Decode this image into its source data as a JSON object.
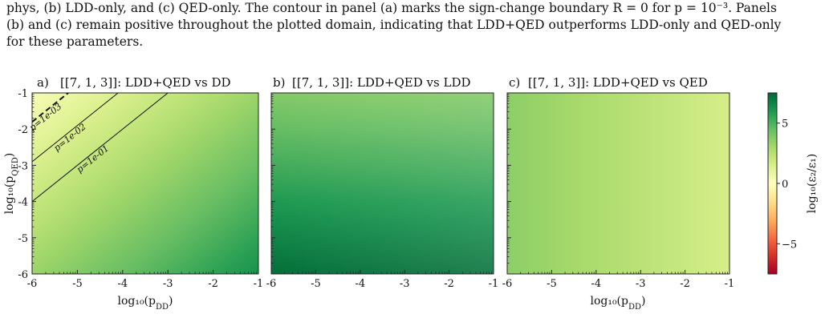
{
  "caption": {
    "line1": "phys, (b) LDD-only, and (c) QED-only. The contour in panel (a) marks the sign-change boundary R = 0 for p = 10⁻³. Panels",
    "line2": "(b) and (c) remain positive throughout the plotted domain, indicating that LDD+QED outperforms LDD-only and QED-only",
    "line3": "for these parameters."
  },
  "colors": {
    "colormap": [
      "#a50026",
      "#d73027",
      "#f46d43",
      "#fdae61",
      "#fee08b",
      "#ffffbf",
      "#d9ef8b",
      "#a6d96a",
      "#66bd63",
      "#1a9850",
      "#006837"
    ]
  },
  "chart_data": [
    {
      "type": "heatmap",
      "panel_letter": "a)",
      "title": "[[7, 1, 3]]: LDD+QED vs DD",
      "xlabel": "log₁₀(p_DD)",
      "ylabel": "log₁₀(p_QED)",
      "xlim": [
        -6,
        -1
      ],
      "ylim": [
        -6,
        -1
      ],
      "xticks": [
        "-6",
        "-5",
        "-4",
        "-3",
        "-2",
        "-1"
      ],
      "yticks": [
        "-6",
        "-5",
        "-4",
        "-3",
        "-2",
        "-1"
      ],
      "field": {
        "at_top_left": 0.3,
        "at_bottom_right": 6.2
      },
      "contours": [
        {
          "label": "p=1e-03",
          "style": "dashed",
          "x": [
            -6.0,
            -5.2
          ],
          "y": [
            -1.8,
            -1.0
          ]
        },
        {
          "label": "p=1e-02",
          "style": "solid",
          "x": [
            -6.0,
            -4.1
          ],
          "y": [
            -2.9,
            -1.0
          ]
        },
        {
          "label": "p=1e-01",
          "style": "solid",
          "x": [
            -6.0,
            -3.0
          ],
          "y": [
            -4.0,
            -1.0
          ]
        }
      ]
    },
    {
      "type": "heatmap",
      "panel_letter": "b)",
      "title": "[[7, 1, 3]]: LDD+QED vs LDD",
      "xlabel": "",
      "ylabel": "",
      "xlim": [
        -6,
        -1
      ],
      "ylim": [
        -6,
        -1
      ],
      "xticks": [
        "-6",
        "-5",
        "-4",
        "-3",
        "-2",
        "-1"
      ],
      "yticks": [],
      "field": {
        "at_top": 3.8,
        "at_bottom": 7.3
      }
    },
    {
      "type": "heatmap",
      "panel_letter": "c)",
      "title": "[[7, 1, 3]]: LDD+QED vs QED",
      "xlabel": "log₁₀(p_DD)",
      "ylabel": "",
      "xlim": [
        -6,
        -1
      ],
      "ylim": [
        -6,
        -1
      ],
      "xticks": [
        "-6",
        "-5",
        "-4",
        "-3",
        "-2",
        "-1"
      ],
      "yticks": [],
      "field": {
        "at_left": 3.6,
        "at_right": 1.6
      }
    }
  ],
  "colorbar": {
    "label": "log₁₀(ε₂/ε₁)",
    "range": [
      -7.5,
      7.5
    ],
    "ticks": [
      "5",
      "0",
      "−5"
    ]
  }
}
